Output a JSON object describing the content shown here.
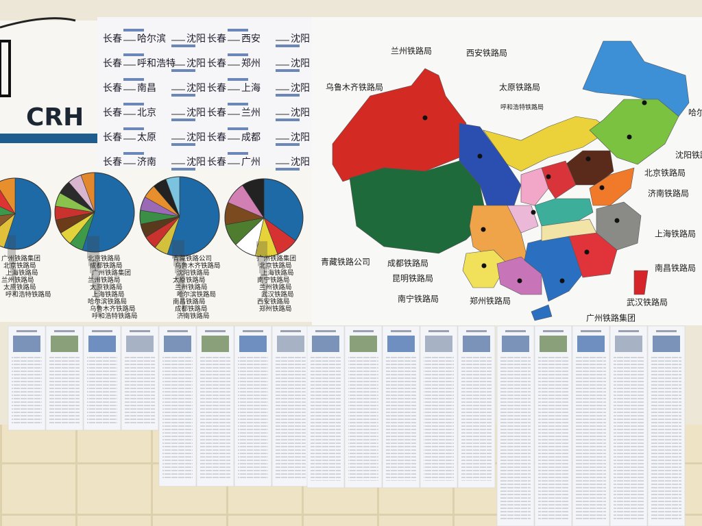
{
  "left_poster": {
    "logo": "CRH"
  },
  "routes": [
    {
      "from": "长春",
      "via": "哈尔滨",
      "to": "沈阳"
    },
    {
      "from": "长春",
      "via": "西安",
      "to": "沈阳"
    },
    {
      "from": "长春",
      "via": "呼和浩特",
      "to": "沈阳"
    },
    {
      "from": "长春",
      "via": "郑州",
      "to": "沈阳"
    },
    {
      "from": "长春",
      "via": "南昌",
      "to": "沈阳"
    },
    {
      "from": "长春",
      "via": "上海",
      "to": "沈阳"
    },
    {
      "from": "长春",
      "via": "北京",
      "to": "沈阳"
    },
    {
      "from": "长春",
      "via": "兰州",
      "to": "沈阳"
    },
    {
      "from": "长春",
      "via": "太原",
      "to": "沈阳"
    },
    {
      "from": "长春",
      "via": "成都",
      "to": "沈阳"
    },
    {
      "from": "长春",
      "via": "济南",
      "to": "沈阳"
    },
    {
      "from": "长春",
      "via": "广州",
      "to": "沈阳"
    }
  ],
  "pie_poster": {
    "pies": [
      {
        "labels": [
          "广州铁路集团",
          "北京铁路局",
          "上海铁路局",
          "兰州铁路局",
          "太原铁路局",
          "呼和浩特铁路局"
        ]
      },
      {
        "labels": [
          "北京铁路局",
          "成都铁路局",
          "广州铁路集团",
          "兰州铁路局",
          "太原铁路局",
          "上海铁路局",
          "哈尔滨铁路局",
          "乌鲁木齐铁路局",
          "呼和浩特铁路局"
        ]
      },
      {
        "labels": [
          "青藏铁路公司",
          "乌鲁木齐铁路局",
          "沈阳铁路局",
          "太原铁路局",
          "兰州铁路局",
          "哈尔滨铁路局",
          "南昌铁路局",
          "成都铁路局",
          "济南铁路局"
        ]
      },
      {
        "labels": [
          "广州铁路集团",
          "北京铁路局",
          "上海铁路局",
          "南宁铁路局",
          "兰州铁路局",
          "武汉铁路局",
          "西安铁路局",
          "郑州铁路局"
        ]
      }
    ]
  },
  "map_labels": [
    "兰州铁路局",
    "西安铁路局",
    "乌鲁木齐铁路局",
    "太原铁路局",
    "呼和浩特铁路局",
    "哈尔滨铁路局",
    "沈阳铁路局",
    "北京铁路局",
    "济南铁路局",
    "上海铁路局",
    "南昌铁路局",
    "武汉铁路局",
    "广州铁路集团",
    "郑州铁路局",
    "南宁铁路局",
    "昆明铁路局",
    "成都铁路局",
    "青藏铁路公司"
  ]
}
